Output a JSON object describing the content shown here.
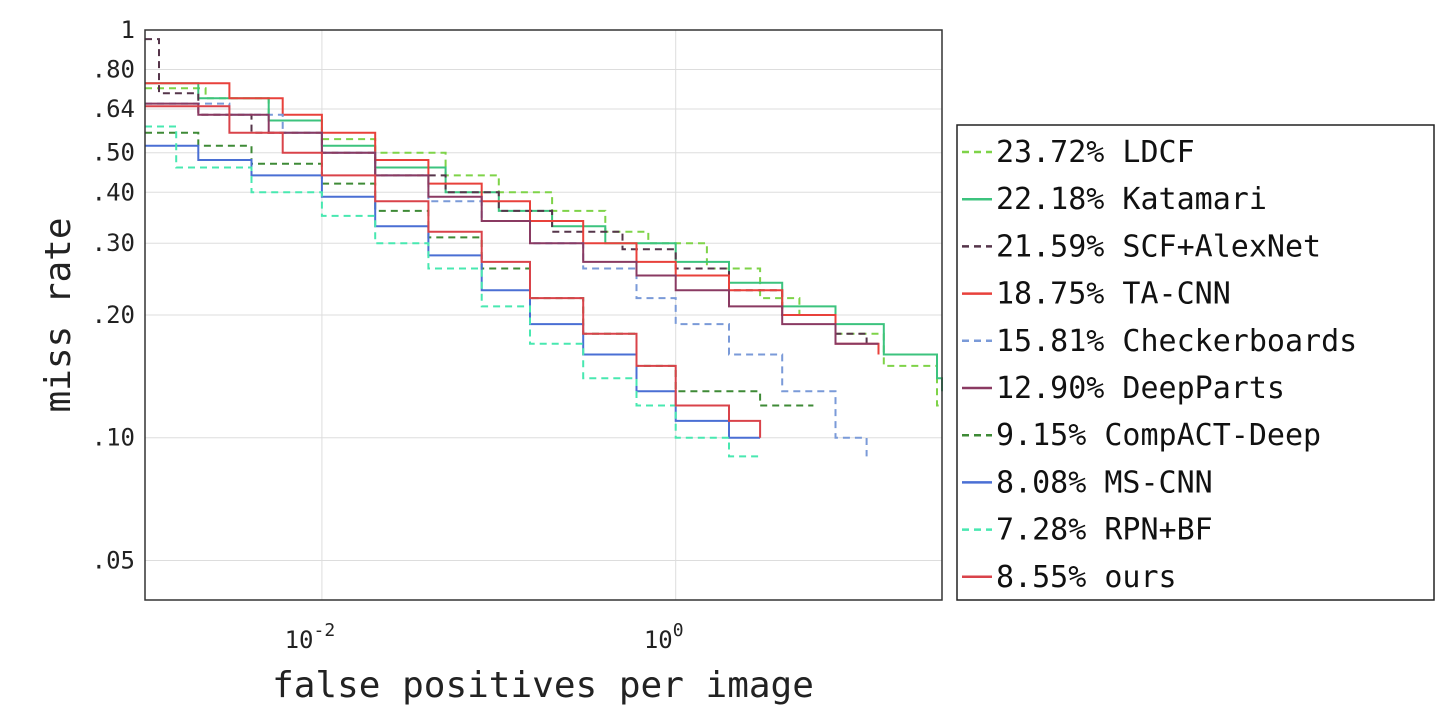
{
  "chart_data": {
    "type": "line",
    "xlabel": "false positives per image",
    "ylabel": "miss rate",
    "xscale": "log",
    "yscale": "log",
    "xlim": [
      0.001,
      32
    ],
    "ylim": [
      0.04,
      1
    ],
    "grid": true,
    "legend_position": "right",
    "x_tick_labels": [
      {
        "base": "10",
        "exp": "-2",
        "value": 0.01
      },
      {
        "base": "10",
        "exp": "0",
        "value": 1
      }
    ],
    "y_tick_labels": [
      {
        "label": "1",
        "value": 1
      },
      {
        "label": ".80",
        "value": 0.8
      },
      {
        "label": ".64",
        "value": 0.64
      },
      {
        "label": ".50",
        "value": 0.5
      },
      {
        "label": ".40",
        "value": 0.4
      },
      {
        "label": ".30",
        "value": 0.3
      },
      {
        "label": ".20",
        "value": 0.2
      },
      {
        "label": ".10",
        "value": 0.1
      },
      {
        "label": ".05",
        "value": 0.05
      }
    ],
    "series": [
      {
        "name": "23.72% LDCF",
        "color": "#7ed348",
        "dash": true,
        "points": [
          [
            0.001,
            0.72
          ],
          [
            0.0022,
            0.68
          ],
          [
            0.005,
            0.6
          ],
          [
            0.01,
            0.54
          ],
          [
            0.02,
            0.5
          ],
          [
            0.05,
            0.44
          ],
          [
            0.1,
            0.4
          ],
          [
            0.2,
            0.36
          ],
          [
            0.4,
            0.32
          ],
          [
            0.7,
            0.3
          ],
          [
            1.5,
            0.26
          ],
          [
            3,
            0.22
          ],
          [
            5,
            0.2
          ],
          [
            8,
            0.18
          ],
          [
            15,
            0.15
          ],
          [
            30,
            0.12
          ],
          [
            56,
            0.12
          ]
        ]
      },
      {
        "name": "22.18% Katamari",
        "color": "#3cc37e",
        "dash": false,
        "points": [
          [
            0.001,
            0.74
          ],
          [
            0.002,
            0.68
          ],
          [
            0.005,
            0.6
          ],
          [
            0.01,
            0.52
          ],
          [
            0.02,
            0.46
          ],
          [
            0.05,
            0.4
          ],
          [
            0.1,
            0.36
          ],
          [
            0.2,
            0.33
          ],
          [
            0.4,
            0.3
          ],
          [
            1,
            0.27
          ],
          [
            2,
            0.24
          ],
          [
            4,
            0.21
          ],
          [
            8,
            0.19
          ],
          [
            15,
            0.16
          ],
          [
            30,
            0.14
          ],
          [
            45,
            0.13
          ]
        ]
      },
      {
        "name": "21.59% SCF+AlexNet",
        "color": "#55354a",
        "dash": true,
        "points": [
          [
            0.001,
            0.95
          ],
          [
            0.0012,
            0.7
          ],
          [
            0.002,
            0.62
          ],
          [
            0.004,
            0.56
          ],
          [
            0.01,
            0.5
          ],
          [
            0.02,
            0.44
          ],
          [
            0.05,
            0.4
          ],
          [
            0.1,
            0.36
          ],
          [
            0.2,
            0.32
          ],
          [
            0.5,
            0.29
          ],
          [
            1,
            0.26
          ],
          [
            2,
            0.23
          ],
          [
            4,
            0.2
          ],
          [
            8,
            0.18
          ],
          [
            12,
            0.17
          ]
        ]
      },
      {
        "name": "18.75% TA-CNN",
        "color": "#e8413b",
        "dash": false,
        "points": [
          [
            0.001,
            0.74
          ],
          [
            0.003,
            0.68
          ],
          [
            0.006,
            0.62
          ],
          [
            0.01,
            0.56
          ],
          [
            0.02,
            0.48
          ],
          [
            0.04,
            0.42
          ],
          [
            0.08,
            0.38
          ],
          [
            0.15,
            0.34
          ],
          [
            0.3,
            0.3
          ],
          [
            0.6,
            0.27
          ],
          [
            1,
            0.25
          ],
          [
            2,
            0.23
          ],
          [
            4,
            0.2
          ],
          [
            8,
            0.17
          ],
          [
            14,
            0.16
          ]
        ]
      },
      {
        "name": "15.81% Checkerboards",
        "color": "#7a9ad8",
        "dash": true,
        "points": [
          [
            0.001,
            0.66
          ],
          [
            0.003,
            0.62
          ],
          [
            0.006,
            0.56
          ],
          [
            0.01,
            0.5
          ],
          [
            0.02,
            0.44
          ],
          [
            0.04,
            0.38
          ],
          [
            0.08,
            0.34
          ],
          [
            0.15,
            0.3
          ],
          [
            0.3,
            0.26
          ],
          [
            0.6,
            0.22
          ],
          [
            1,
            0.19
          ],
          [
            2,
            0.16
          ],
          [
            4,
            0.13
          ],
          [
            8,
            0.1
          ],
          [
            12,
            0.09
          ]
        ]
      },
      {
        "name": "12.90% DeepParts",
        "color": "#8a3a62",
        "dash": false,
        "points": [
          [
            0.001,
            0.66
          ],
          [
            0.002,
            0.62
          ],
          [
            0.005,
            0.56
          ],
          [
            0.01,
            0.5
          ],
          [
            0.02,
            0.44
          ],
          [
            0.04,
            0.39
          ],
          [
            0.08,
            0.34
          ],
          [
            0.15,
            0.3
          ],
          [
            0.3,
            0.27
          ],
          [
            0.6,
            0.25
          ],
          [
            1,
            0.23
          ],
          [
            2,
            0.21
          ],
          [
            4,
            0.19
          ],
          [
            8,
            0.17
          ],
          [
            14,
            0.17
          ]
        ]
      },
      {
        "name": "9.15% CompACT-Deep",
        "color": "#3e8a36",
        "dash": true,
        "points": [
          [
            0.001,
            0.56
          ],
          [
            0.002,
            0.52
          ],
          [
            0.004,
            0.47
          ],
          [
            0.01,
            0.42
          ],
          [
            0.02,
            0.36
          ],
          [
            0.04,
            0.31
          ],
          [
            0.08,
            0.26
          ],
          [
            0.15,
            0.22
          ],
          [
            0.3,
            0.18
          ],
          [
            0.6,
            0.15
          ],
          [
            1,
            0.13
          ],
          [
            3,
            0.12
          ],
          [
            6,
            0.12
          ]
        ]
      },
      {
        "name": "8.08% MS-CNN",
        "color": "#4a6fd4",
        "dash": false,
        "points": [
          [
            0.001,
            0.52
          ],
          [
            0.002,
            0.48
          ],
          [
            0.004,
            0.44
          ],
          [
            0.01,
            0.39
          ],
          [
            0.02,
            0.33
          ],
          [
            0.04,
            0.28
          ],
          [
            0.08,
            0.23
          ],
          [
            0.15,
            0.19
          ],
          [
            0.3,
            0.16
          ],
          [
            0.6,
            0.13
          ],
          [
            1,
            0.11
          ],
          [
            2,
            0.1
          ],
          [
            3,
            0.1
          ]
        ]
      },
      {
        "name": "7.28% RPN+BF",
        "color": "#48e8b0",
        "dash": true,
        "points": [
          [
            0.001,
            0.58
          ],
          [
            0.0015,
            0.46
          ],
          [
            0.004,
            0.4
          ],
          [
            0.01,
            0.35
          ],
          [
            0.02,
            0.3
          ],
          [
            0.04,
            0.26
          ],
          [
            0.08,
            0.21
          ],
          [
            0.15,
            0.17
          ],
          [
            0.3,
            0.14
          ],
          [
            0.6,
            0.12
          ],
          [
            1,
            0.1
          ],
          [
            2,
            0.09
          ],
          [
            3,
            0.09
          ]
        ]
      },
      {
        "name": "8.55% ours",
        "color": "#d9434a",
        "dash": false,
        "points": [
          [
            0.001,
            0.65
          ],
          [
            0.003,
            0.56
          ],
          [
            0.006,
            0.5
          ],
          [
            0.01,
            0.44
          ],
          [
            0.02,
            0.38
          ],
          [
            0.04,
            0.32
          ],
          [
            0.08,
            0.27
          ],
          [
            0.15,
            0.22
          ],
          [
            0.3,
            0.18
          ],
          [
            0.6,
            0.15
          ],
          [
            1,
            0.12
          ],
          [
            2,
            0.11
          ],
          [
            3,
            0.1
          ]
        ]
      }
    ]
  }
}
